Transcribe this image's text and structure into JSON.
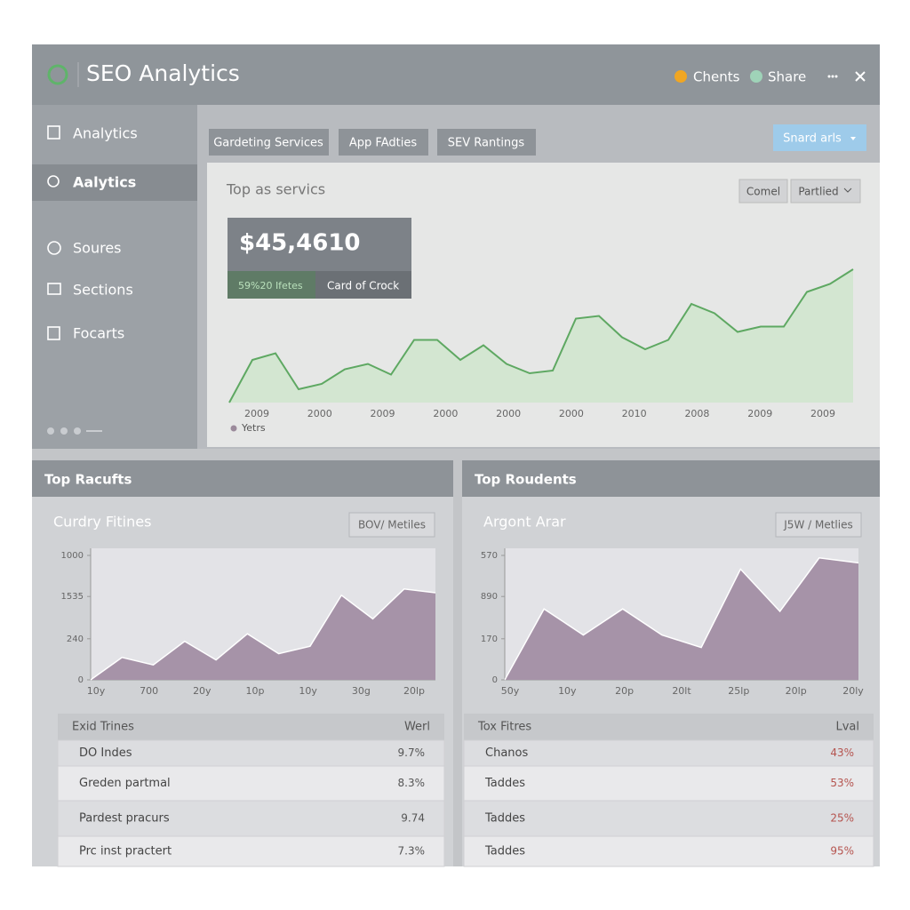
{
  "header": {
    "title": "SEO Analytics",
    "clients": "Chents",
    "share": "Share"
  },
  "sidebar": {
    "items": [
      "Analytics",
      "Aalytics",
      "Soures",
      "Sections",
      "Focarts"
    ]
  },
  "tabs": [
    "Gardeting Services",
    "App FAdties",
    "SEV Rantings"
  ],
  "action_button": "Snard arls",
  "main_panel": {
    "title": "Top as servics",
    "buttons": [
      "Comel",
      "Partlied"
    ],
    "kpi": {
      "value": "$45,4610",
      "sub_left": "59%20 Ifetes",
      "sub_right": "Card of Crock"
    },
    "chart": {
      "type": "area",
      "color": "#5ea862",
      "ylim": [
        0,
        100
      ],
      "values": [
        0,
        32,
        37,
        10,
        14,
        25,
        29,
        21,
        47,
        47,
        32,
        43,
        29,
        22,
        24,
        63,
        65,
        49,
        40,
        47,
        74,
        67,
        53,
        57,
        57,
        83,
        89,
        100
      ],
      "x_labels": [
        "2009",
        "2000",
        "2009",
        "2000",
        "2000",
        "2000",
        "2010",
        "2008",
        "2009",
        "2009"
      ],
      "legend": "Yetrs"
    }
  },
  "panels": [
    {
      "title": "Top Racufts",
      "subtitle": "Curdry Fitines",
      "button": "BOV/ Metiles",
      "chart": {
        "type": "area",
        "color": "#a693a8",
        "ylim": [
          0,
          100
        ],
        "yticks": [
          {
            "value": 100,
            "label": "1000"
          },
          {
            "value": 67,
            "label": "1535"
          },
          {
            "value": 33,
            "label": "240"
          },
          0
        ],
        "values": [
          0,
          18,
          12,
          31,
          16,
          37,
          21,
          27,
          68,
          49,
          73,
          70
        ],
        "x_labels": [
          "10y",
          "700",
          "20y",
          "10p",
          "10y",
          "30g",
          "20lp"
        ]
      },
      "table": {
        "header": [
          "Exid Trines",
          "Werl"
        ],
        "rows": [
          [
            "DO Indes",
            "9.7%"
          ],
          [
            "Greden partmal",
            "8.3%"
          ],
          [
            "Pardest pracurs",
            "9.74"
          ],
          [
            "Prc inst practert",
            "7.3%"
          ]
        ]
      }
    },
    {
      "title": "Top Roudents",
      "subtitle": "Argont Arar",
      "button": "J5W / Metlies",
      "chart": {
        "type": "area",
        "color": "#a693a8",
        "ylim": [
          0,
          100
        ],
        "yticks": [
          {
            "value": 100,
            "label": "570"
          },
          {
            "value": 67,
            "label": "890"
          },
          {
            "value": 33,
            "label": "170"
          },
          0
        ],
        "values": [
          0,
          57,
          36,
          57,
          36,
          26,
          89,
          55,
          98,
          94
        ],
        "x_labels": [
          "50y",
          "10y",
          "20p",
          "20lt",
          "25lp",
          "20lp",
          "20ly"
        ]
      },
      "table": {
        "header": [
          "Tox Fitres",
          "Lval"
        ],
        "rows": [
          [
            "Chanos",
            "43%"
          ],
          [
            "Taddes",
            "53%"
          ],
          [
            "Taddes",
            "25%"
          ],
          [
            "Taddes",
            "95%"
          ]
        ]
      }
    }
  ]
}
